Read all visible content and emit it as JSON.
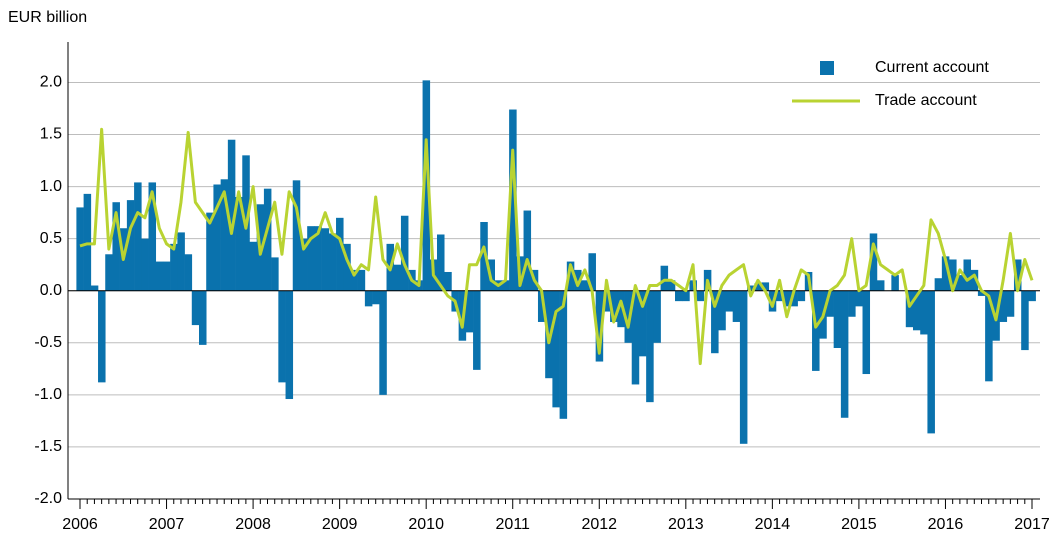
{
  "chart_data": {
    "type": "bar-line",
    "y_label": "EUR billion",
    "categories": [
      "2006",
      null,
      null,
      null,
      null,
      null,
      null,
      null,
      null,
      null,
      null,
      null,
      "2007",
      null,
      null,
      null,
      null,
      null,
      null,
      null,
      null,
      null,
      null,
      null,
      "2008",
      null,
      null,
      null,
      null,
      null,
      null,
      null,
      null,
      null,
      null,
      null,
      "2009",
      null,
      null,
      null,
      null,
      null,
      null,
      null,
      null,
      null,
      null,
      null,
      "2010",
      null,
      null,
      null,
      null,
      null,
      null,
      null,
      null,
      null,
      null,
      null,
      "2011",
      null,
      null,
      null,
      null,
      null,
      null,
      null,
      null,
      null,
      null,
      null,
      "2012",
      null,
      null,
      null,
      null,
      null,
      null,
      null,
      null,
      null,
      null,
      null,
      "2013",
      null,
      null,
      null,
      null,
      null,
      null,
      null,
      null,
      null,
      null,
      null,
      "2014",
      null,
      null,
      null,
      null,
      null,
      null,
      null,
      null,
      null,
      null,
      null,
      "2015",
      null,
      null,
      null,
      null,
      null,
      null,
      null,
      null,
      null,
      null,
      null,
      "2016",
      null,
      null,
      null,
      null,
      null,
      null,
      null,
      null,
      null,
      null,
      null,
      "2017"
    ],
    "series": [
      {
        "name": "Current account",
        "type": "bar",
        "color": "#0a72ad",
        "values": [
          0.8,
          0.93,
          0.05,
          -0.88,
          0.35,
          0.85,
          0.6,
          0.87,
          1.04,
          0.5,
          1.04,
          0.28,
          0.28,
          0.45,
          0.56,
          0.35,
          -0.33,
          -0.52,
          0.75,
          1.02,
          1.07,
          1.45,
          0.9,
          1.3,
          0.47,
          0.83,
          0.98,
          0.32,
          -0.88,
          -1.04,
          1.06,
          0.5,
          0.62,
          0.62,
          0.6,
          0.55,
          0.7,
          0.45,
          0.2,
          0.2,
          -0.15,
          -0.13,
          -1.0,
          0.45,
          0.25,
          0.72,
          0.2,
          0.1,
          2.02,
          0.3,
          0.54,
          0.18,
          -0.2,
          -0.48,
          -0.4,
          -0.76,
          0.66,
          0.3,
          0.1,
          0.1,
          1.74,
          0.33,
          0.77,
          0.2,
          -0.3,
          -0.84,
          -1.12,
          -1.23,
          0.28,
          0.2,
          0.1,
          0.36,
          -0.68,
          -0.2,
          -0.3,
          -0.35,
          -0.5,
          -0.9,
          -0.63,
          -1.07,
          -0.5,
          0.24,
          0.1,
          -0.1,
          -0.1,
          0.1,
          -0.1,
          0.2,
          -0.6,
          -0.38,
          -0.2,
          -0.3,
          -1.47,
          0.05,
          0.07,
          0.08,
          -0.2,
          -0.1,
          -0.15,
          -0.15,
          -0.1,
          0.18,
          -0.77,
          -0.46,
          -0.25,
          -0.55,
          -1.22,
          -0.25,
          -0.15,
          -0.8,
          0.55,
          0.1,
          0.0,
          0.15,
          0.0,
          -0.35,
          -0.38,
          -0.42,
          -1.37,
          0.12,
          0.33,
          0.3,
          0.15,
          0.3,
          0.2,
          -0.05,
          -0.87,
          -0.48,
          -0.3,
          -0.25,
          0.3,
          -0.57,
          -0.1
        ]
      },
      {
        "name": "Trade account",
        "type": "line",
        "color": "#b9d332",
        "values": [
          0.43,
          0.45,
          0.45,
          1.55,
          0.4,
          0.75,
          0.3,
          0.6,
          0.75,
          0.7,
          0.95,
          0.6,
          0.45,
          0.4,
          0.85,
          1.52,
          0.85,
          0.75,
          0.65,
          0.8,
          0.95,
          0.55,
          0.95,
          0.6,
          1.0,
          0.35,
          0.6,
          0.85,
          0.35,
          0.95,
          0.8,
          0.4,
          0.5,
          0.55,
          0.75,
          0.55,
          0.5,
          0.3,
          0.15,
          0.25,
          0.2,
          0.9,
          0.3,
          0.2,
          0.45,
          0.25,
          0.1,
          0.05,
          1.45,
          0.15,
          0.05,
          -0.05,
          -0.1,
          -0.35,
          0.25,
          0.25,
          0.42,
          0.1,
          0.05,
          0.1,
          1.35,
          0.05,
          0.3,
          0.1,
          0.0,
          -0.5,
          -0.2,
          -0.15,
          0.25,
          0.05,
          0.2,
          0.0,
          -0.6,
          0.1,
          -0.3,
          -0.1,
          -0.35,
          0.05,
          -0.15,
          0.05,
          0.05,
          0.1,
          0.1,
          0.05,
          0.0,
          0.25,
          -0.7,
          0.1,
          -0.15,
          0.05,
          0.15,
          0.2,
          0.25,
          -0.05,
          0.1,
          0.0,
          -0.15,
          0.1,
          -0.25,
          0.0,
          0.2,
          0.15,
          -0.35,
          -0.25,
          0.0,
          0.05,
          0.15,
          0.5,
          0.0,
          0.05,
          0.45,
          0.25,
          0.2,
          0.15,
          0.2,
          -0.15,
          -0.05,
          0.05,
          0.68,
          0.55,
          0.3,
          0.0,
          0.2,
          0.1,
          0.15,
          0.0,
          -0.05,
          -0.28,
          0.1,
          0.55,
          0.0,
          0.3,
          0.1
        ]
      }
    ],
    "ylim": [
      -2,
      2.35
    ],
    "yticks": [
      {
        "value": -2,
        "label": "-2.0"
      },
      -1.5,
      {
        "value": -1,
        "label": "-1.0"
      },
      -0.5,
      {
        "value": 0,
        "label": "0.0"
      },
      0.5,
      {
        "value": 1,
        "label": "1.0"
      },
      1.5,
      {
        "value": 2,
        "label": "2.0"
      }
    ],
    "grid": true,
    "legend": "top-right"
  }
}
